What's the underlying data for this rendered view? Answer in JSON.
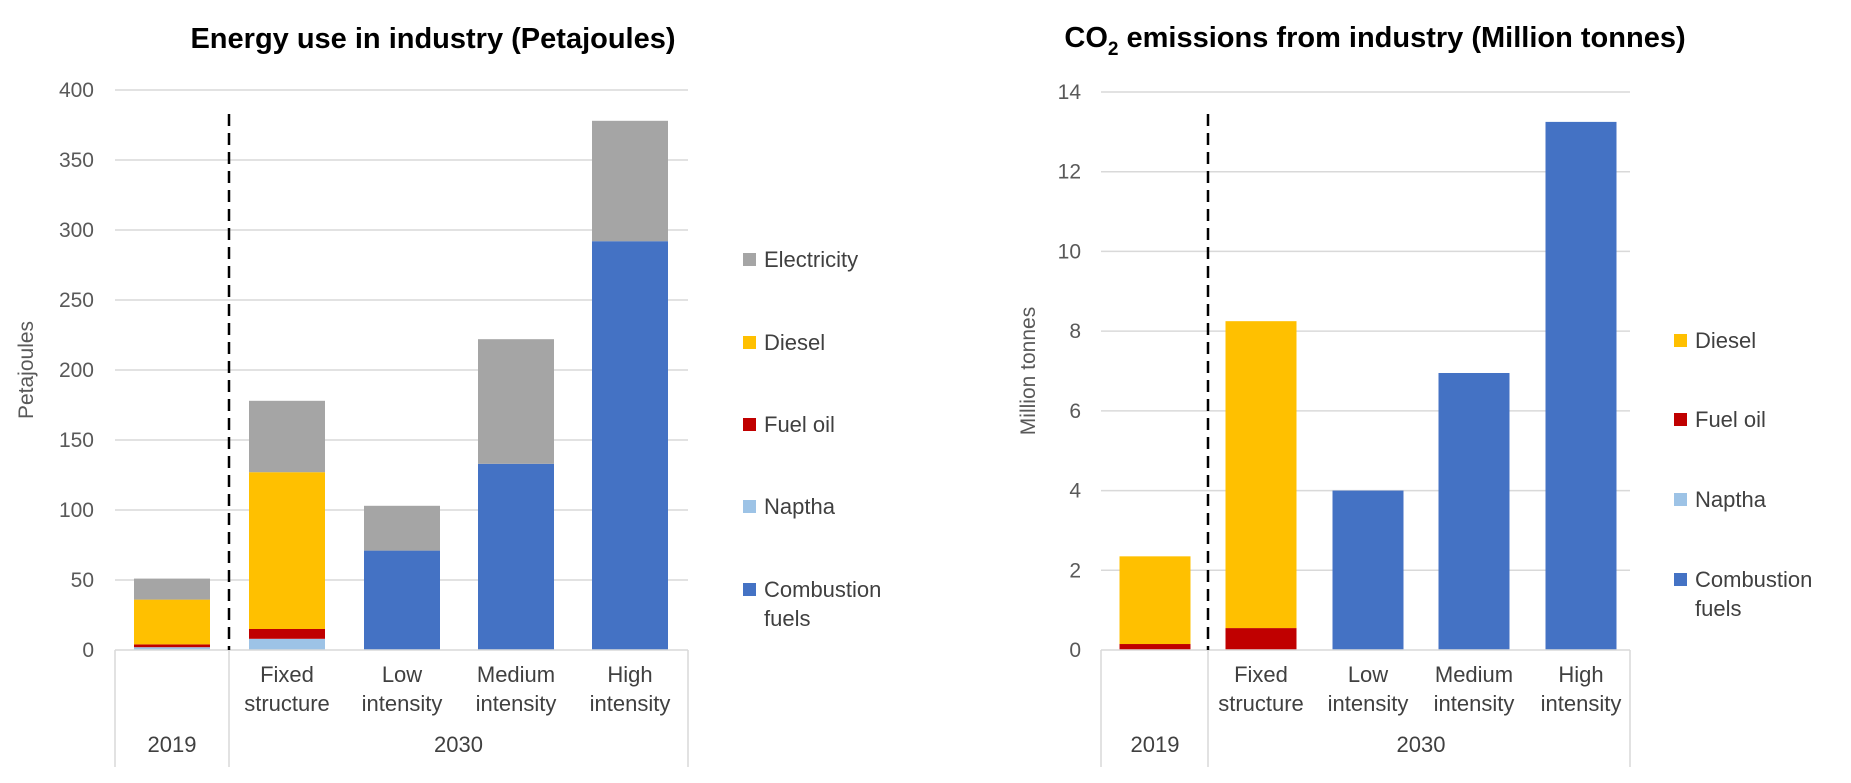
{
  "chart_data": [
    {
      "type": "bar",
      "stacked": true,
      "title": "Energy use in industry (Petajoules)",
      "ylabel": "Petajoules",
      "ylim": [
        0,
        400
      ],
      "yticks": [
        0,
        50,
        100,
        150,
        200,
        250,
        300,
        350,
        400
      ],
      "grid": true,
      "legend_position": "right",
      "categories": [
        "",
        "Fixed structure",
        "Low intensity",
        "Medium intensity",
        "High intensity"
      ],
      "category_lines": [
        [
          ""
        ],
        [
          "Fixed",
          "structure"
        ],
        [
          "Low",
          "intensity"
        ],
        [
          "Medium",
          "intensity"
        ],
        [
          "High",
          "intensity"
        ]
      ],
      "groups": [
        {
          "label": "2019",
          "span": [
            0,
            0
          ]
        },
        {
          "label": "2030",
          "span": [
            1,
            4
          ]
        }
      ],
      "series": [
        {
          "name": "Naptha",
          "color": "#9DC3E6",
          "values": [
            2,
            8,
            0,
            0,
            0
          ]
        },
        {
          "name": "Fuel oil",
          "color": "#C00000",
          "values": [
            2,
            7,
            0,
            0,
            0
          ]
        },
        {
          "name": "Combustion fuels",
          "color": "#4472C4",
          "values": [
            0,
            0,
            71,
            133,
            292
          ]
        },
        {
          "name": "Diesel",
          "color": "#FFC000",
          "values": [
            32,
            112,
            0,
            0,
            0
          ]
        },
        {
          "name": "Electricity",
          "color": "#A5A5A5",
          "values": [
            15,
            51,
            32,
            89,
            86
          ]
        }
      ],
      "legend": [
        {
          "name": "Electricity",
          "color": "#A5A5A5",
          "lines": [
            "Electricity"
          ]
        },
        {
          "name": "Diesel",
          "color": "#FFC000",
          "lines": [
            "Diesel"
          ]
        },
        {
          "name": "Fuel oil",
          "color": "#C00000",
          "lines": [
            "Fuel oil"
          ]
        },
        {
          "name": "Naptha",
          "color": "#9DC3E6",
          "lines": [
            "Naptha"
          ]
        },
        {
          "name": "Combustion fuels",
          "color": "#4472C4",
          "lines": [
            "Combustion",
            "fuels"
          ]
        }
      ]
    },
    {
      "type": "bar",
      "stacked": true,
      "title": "CO2 emissions from industry (Million tonnes)",
      "title_parts": {
        "prefix": "CO",
        "subscript": "2",
        "suffix": " emissions from industry (Million tonnes)"
      },
      "ylabel": "Million tonnes",
      "ylim": [
        0,
        14
      ],
      "yticks": [
        0,
        2,
        4,
        6,
        8,
        10,
        12,
        14
      ],
      "grid": true,
      "legend_position": "right",
      "categories": [
        "",
        "Fixed structure",
        "Low intensity",
        "Medium intensity",
        "High intensity"
      ],
      "category_lines": [
        [
          ""
        ],
        [
          "Fixed",
          "structure"
        ],
        [
          "Low",
          "intensity"
        ],
        [
          "Medium",
          "intensity"
        ],
        [
          "High",
          "intensity"
        ]
      ],
      "groups": [
        {
          "label": "2019",
          "span": [
            0,
            0
          ]
        },
        {
          "label": "2030",
          "span": [
            1,
            4
          ]
        }
      ],
      "series": [
        {
          "name": "Naptha",
          "color": "#9DC3E6",
          "values": [
            0,
            0,
            0,
            0,
            0
          ]
        },
        {
          "name": "Fuel oil",
          "color": "#C00000",
          "values": [
            0.15,
            0.55,
            0,
            0,
            0
          ]
        },
        {
          "name": "Combustion fuels",
          "color": "#4472C4",
          "values": [
            0,
            0,
            4.0,
            6.95,
            13.25
          ]
        },
        {
          "name": "Diesel",
          "color": "#FFC000",
          "values": [
            2.2,
            7.7,
            0,
            0,
            0
          ]
        }
      ],
      "legend": [
        {
          "name": "Diesel",
          "color": "#FFC000",
          "lines": [
            "Diesel"
          ]
        },
        {
          "name": "Fuel oil",
          "color": "#C00000",
          "lines": [
            "Fuel oil"
          ]
        },
        {
          "name": "Naptha",
          "color": "#9DC3E6",
          "lines": [
            "Naptha"
          ]
        },
        {
          "name": "Combustion fuels",
          "color": "#4472C4",
          "lines": [
            "Combustion",
            "fuels"
          ]
        }
      ]
    }
  ]
}
